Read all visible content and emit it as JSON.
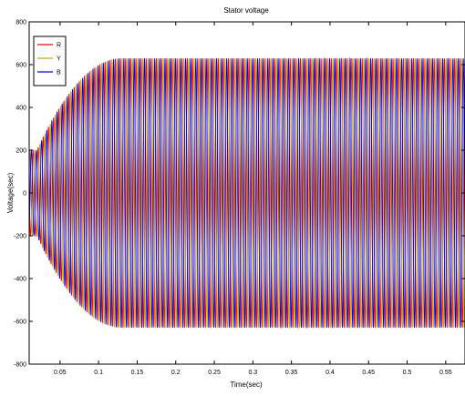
{
  "chart_data": {
    "type": "line",
    "title": "Stator voltage",
    "xlabel": "Time(sec)",
    "ylabel": "Voltage(sec)",
    "xlim": [
      0.01,
      0.575
    ],
    "ylim": [
      -800,
      800
    ],
    "xticks": [
      0.05,
      0.1,
      0.15,
      0.2,
      0.25,
      0.3,
      0.35,
      0.4,
      0.45,
      0.5,
      0.55
    ],
    "xtick_labels": [
      "0.05",
      "0.1",
      "0.15",
      "0.2",
      "0.25",
      "0.3",
      "0.35",
      "0.4",
      "0.45",
      "0.5",
      "0.55"
    ],
    "yticks": [
      -800,
      -600,
      -400,
      -200,
      0,
      200,
      400,
      600,
      800
    ],
    "ytick_labels": [
      "-800",
      "-600",
      "-400",
      "-200",
      "0",
      "200",
      "400",
      "600",
      "800"
    ],
    "grid": false,
    "legend_position": "top-left",
    "waveform": {
      "frequency_hz": 150,
      "steady_amplitude": 630,
      "initial_amplitude": 200
    },
    "series": [
      {
        "name": "R",
        "color": "#ff0000",
        "phase_deg": 0
      },
      {
        "name": "Y",
        "color": "#b3b300",
        "phase_deg": -120
      },
      {
        "name": "B",
        "color": "#0000ff",
        "phase_deg": 120
      }
    ]
  }
}
